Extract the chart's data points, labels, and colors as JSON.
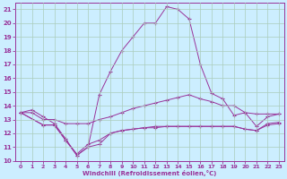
{
  "xlabel": "Windchill (Refroidissement éolien,°C)",
  "background_color": "#cceeff",
  "grid_color": "#aaccbb",
  "line_color": "#993399",
  "xlim": [
    -0.5,
    23.5
  ],
  "ylim": [
    10,
    21.5
  ],
  "yticks": [
    10,
    11,
    12,
    13,
    14,
    15,
    16,
    17,
    18,
    19,
    20,
    21
  ],
  "xticks": [
    0,
    1,
    2,
    3,
    4,
    5,
    6,
    7,
    8,
    9,
    10,
    11,
    12,
    13,
    14,
    15,
    16,
    17,
    18,
    19,
    20,
    21,
    22,
    23
  ],
  "line1_x": [
    0,
    1,
    2,
    3,
    4,
    5,
    6,
    7,
    8,
    9,
    10,
    11,
    12,
    13,
    14,
    15,
    16,
    17,
    18,
    19,
    20,
    21,
    22,
    23
  ],
  "line1_y": [
    13.5,
    13.7,
    13.2,
    12.7,
    11.6,
    10.4,
    11.0,
    14.8,
    16.5,
    18.0,
    19.0,
    20.0,
    20.0,
    21.2,
    21.0,
    20.3,
    17.0,
    14.9,
    14.5,
    13.3,
    13.5,
    13.4,
    13.4,
    13.4
  ],
  "line2_x": [
    0,
    1,
    2,
    3,
    4,
    5,
    6,
    7,
    8,
    9,
    10,
    11,
    12,
    13,
    14,
    15,
    16,
    17,
    18,
    19,
    20,
    21,
    22,
    23
  ],
  "line2_y": [
    13.5,
    13.5,
    13.0,
    13.0,
    12.7,
    12.7,
    12.7,
    13.0,
    13.2,
    13.5,
    13.8,
    14.0,
    14.2,
    14.4,
    14.6,
    14.8,
    14.5,
    14.3,
    14.0,
    14.0,
    13.5,
    12.5,
    13.2,
    13.4
  ],
  "line3_x": [
    0,
    2,
    3,
    4,
    5,
    6,
    7,
    8,
    9,
    10,
    11,
    12,
    13,
    14,
    15,
    16,
    17,
    18,
    19,
    20,
    21,
    22,
    23
  ],
  "line3_y": [
    13.5,
    12.6,
    12.6,
    11.5,
    10.5,
    11.2,
    11.5,
    12.0,
    12.2,
    12.3,
    12.4,
    12.5,
    12.5,
    12.5,
    12.5,
    12.5,
    12.5,
    12.5,
    12.5,
    12.3,
    12.2,
    12.7,
    12.8
  ],
  "line4_x": [
    0,
    2,
    3,
    4,
    5,
    6,
    7,
    8,
    9,
    10,
    11,
    12,
    13,
    14,
    15,
    16,
    17,
    18,
    19,
    20,
    21,
    22,
    23
  ],
  "line4_y": [
    13.5,
    12.6,
    12.6,
    11.5,
    10.4,
    11.0,
    11.2,
    12.0,
    12.2,
    12.3,
    12.4,
    12.4,
    12.5,
    12.5,
    12.5,
    12.5,
    12.5,
    12.5,
    12.5,
    12.3,
    12.2,
    12.6,
    12.7
  ]
}
